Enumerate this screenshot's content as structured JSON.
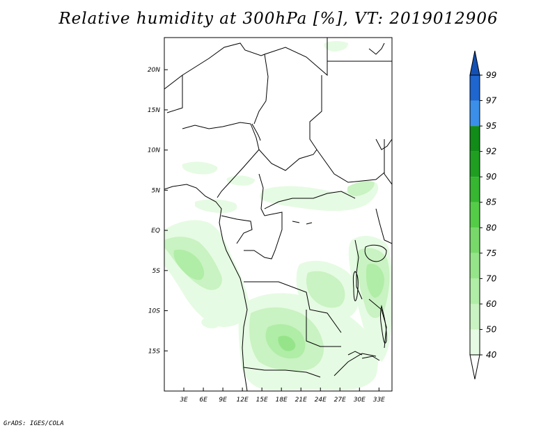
{
  "title": "Relative humidity at 300hPa [%], VT: 2019012906",
  "credit": "GrADS: IGES/COLA",
  "map": {
    "lon_range": [
      0,
      35
    ],
    "lat_range": [
      -20,
      24
    ],
    "lon_ticks": [
      {
        "value": 3,
        "label": "3E"
      },
      {
        "value": 6,
        "label": "6E"
      },
      {
        "value": 9,
        "label": "9E"
      },
      {
        "value": 12,
        "label": "12E"
      },
      {
        "value": 15,
        "label": "15E"
      },
      {
        "value": 18,
        "label": "18E"
      },
      {
        "value": 21,
        "label": "21E"
      },
      {
        "value": 24,
        "label": "24E"
      },
      {
        "value": 27,
        "label": "27E"
      },
      {
        "value": 30,
        "label": "30E"
      },
      {
        "value": 33,
        "label": "33E"
      }
    ],
    "lat_ticks": [
      {
        "value": 20,
        "label": "20N"
      },
      {
        "value": 15,
        "label": "15N"
      },
      {
        "value": 10,
        "label": "10N"
      },
      {
        "value": 5,
        "label": "5N"
      },
      {
        "value": 0,
        "label": "EQ"
      },
      {
        "value": -5,
        "label": "5S"
      },
      {
        "value": -10,
        "label": "10S"
      },
      {
        "value": -15,
        "label": "15S"
      }
    ]
  },
  "colorbar": {
    "levels": [
      {
        "label": "40",
        "color": "#ffffff"
      },
      {
        "label": "50",
        "color": "#e6fbe3"
      },
      {
        "label": "60",
        "color": "#c9f3c2"
      },
      {
        "label": "70",
        "color": "#b0eda6"
      },
      {
        "label": "75",
        "color": "#96e48a"
      },
      {
        "label": "80",
        "color": "#78d96a"
      },
      {
        "label": "85",
        "color": "#55cc48"
      },
      {
        "label": "90",
        "color": "#36b631"
      },
      {
        "label": "92",
        "color": "#1f9e22"
      },
      {
        "label": "95",
        "color": "#128b18"
      },
      {
        "label": "97",
        "color": "#3b8fe9"
      },
      {
        "label": "99",
        "color": "#1f66cf"
      }
    ],
    "top_color": "#1450b4"
  }
}
